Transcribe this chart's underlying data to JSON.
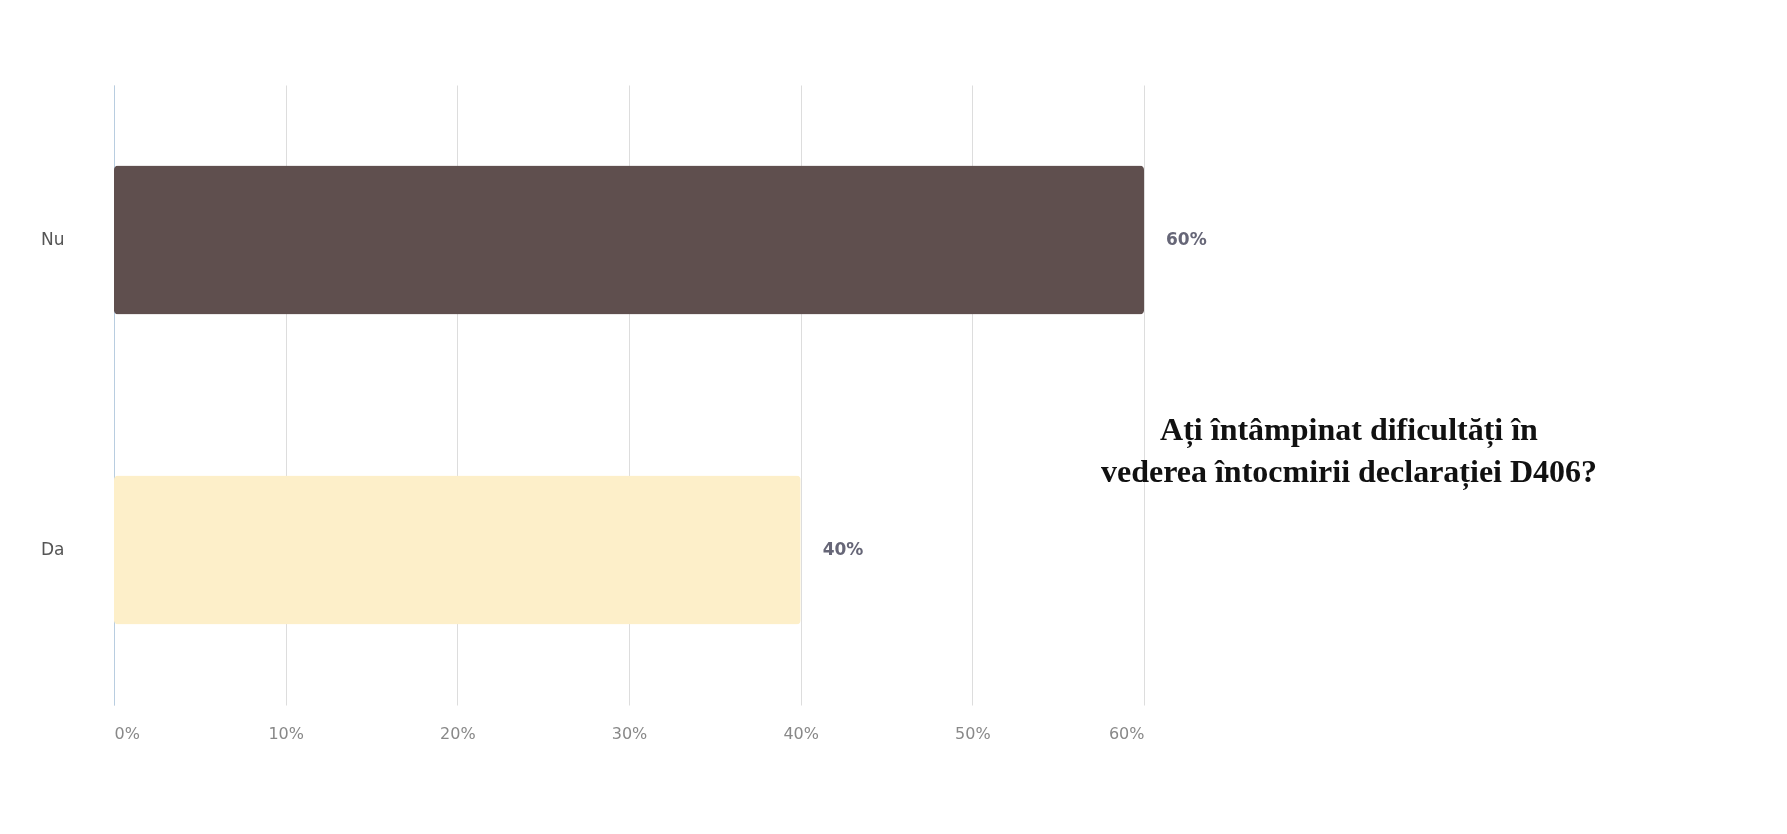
{
  "chart_data": {
    "type": "bar",
    "orientation": "horizontal",
    "title": "Ați întâmpinat dificultăți în vederea întocmirii declarației D406?",
    "categories": [
      "Nu",
      "Da"
    ],
    "values": [
      60,
      40
    ],
    "colors": [
      "#5f4f4e",
      "#fdefc9"
    ],
    "value_labels": [
      "60%",
      "40%"
    ],
    "xlim": [
      0,
      60
    ],
    "xticks": [
      {
        "value": 0,
        "label": "0%"
      },
      {
        "value": 10,
        "label": "10%"
      },
      {
        "value": 20,
        "label": "20%"
      },
      {
        "value": 30,
        "label": "30%"
      },
      {
        "value": 40,
        "label": "40%"
      },
      {
        "value": 50,
        "label": "50%"
      },
      {
        "value": 60,
        "label": "60%"
      }
    ],
    "grid": "x",
    "legend": false
  }
}
